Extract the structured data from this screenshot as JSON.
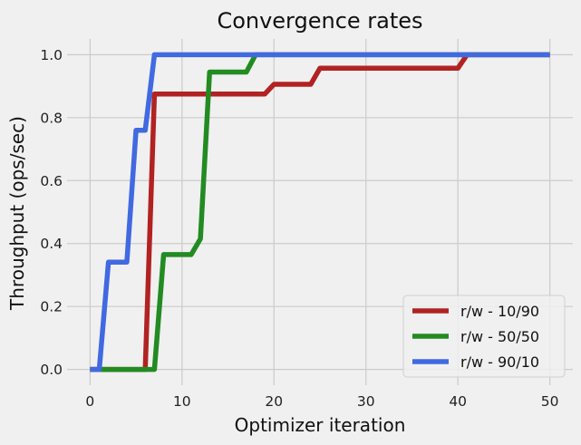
{
  "chart_data": {
    "type": "line",
    "title": "Convergence rates",
    "xlabel": "Optimizer iteration",
    "ylabel": "Throughput (ops/sec)",
    "xlim": [
      -2.5,
      52.5
    ],
    "ylim": [
      -0.05,
      1.05
    ],
    "xticks": [
      0,
      10,
      20,
      30,
      40,
      50
    ],
    "xtick_labels": [
      "0",
      "10",
      "20",
      "30",
      "40",
      "50"
    ],
    "yticks": [
      0.0,
      0.2,
      0.4,
      0.6,
      0.8,
      1.0
    ],
    "ytick_labels": [
      "0.0",
      "0.2",
      "0.4",
      "0.6",
      "0.8",
      "1.0"
    ],
    "grid": true,
    "legend_position": "lower-right",
    "series": [
      {
        "name": "r/w - 10/90",
        "color": "#b22222",
        "x": [
          0,
          1,
          2,
          3,
          4,
          5,
          6,
          7,
          8,
          9,
          10,
          11,
          12,
          13,
          14,
          15,
          16,
          17,
          18,
          19,
          20,
          21,
          22,
          23,
          24,
          25,
          26,
          27,
          28,
          29,
          30,
          31,
          32,
          33,
          34,
          35,
          36,
          37,
          38,
          39,
          40,
          41,
          42,
          43,
          44,
          45,
          46,
          47,
          48,
          49,
          50
        ],
        "y": [
          0,
          0,
          0,
          0,
          0,
          0,
          0,
          0.875,
          0.875,
          0.875,
          0.875,
          0.875,
          0.875,
          0.875,
          0.875,
          0.875,
          0.875,
          0.875,
          0.875,
          0.875,
          0.906,
          0.906,
          0.906,
          0.906,
          0.906,
          0.957,
          0.957,
          0.957,
          0.957,
          0.957,
          0.957,
          0.957,
          0.957,
          0.957,
          0.957,
          0.957,
          0.957,
          0.957,
          0.957,
          0.957,
          0.957,
          1.0,
          1.0,
          1.0,
          1.0,
          1.0,
          1.0,
          1.0,
          1.0,
          1.0,
          1.0
        ]
      },
      {
        "name": "r/w - 50/50",
        "color": "#228b22",
        "x": [
          0,
          1,
          2,
          3,
          4,
          5,
          6,
          7,
          8,
          9,
          10,
          11,
          12,
          13,
          14,
          15,
          16,
          17,
          18,
          19,
          20,
          21,
          22,
          23,
          24,
          25,
          26,
          27,
          28,
          29,
          30,
          31,
          32,
          33,
          34,
          35,
          36,
          37,
          38,
          39,
          40,
          41,
          42,
          43,
          44,
          45,
          46,
          47,
          48,
          49,
          50
        ],
        "y": [
          0,
          0,
          0,
          0,
          0,
          0,
          0,
          0,
          0.365,
          0.365,
          0.365,
          0.365,
          0.415,
          0.945,
          0.945,
          0.945,
          0.945,
          0.945,
          1.0,
          1.0,
          1.0,
          1.0,
          1.0,
          1.0,
          1.0,
          1.0,
          1.0,
          1.0,
          1.0,
          1.0,
          1.0,
          1.0,
          1.0,
          1.0,
          1.0,
          1.0,
          1.0,
          1.0,
          1.0,
          1.0,
          1.0,
          1.0,
          1.0,
          1.0,
          1.0,
          1.0,
          1.0,
          1.0,
          1.0,
          1.0,
          1.0
        ]
      },
      {
        "name": "r/w - 90/10",
        "color": "#4169e1",
        "x": [
          0,
          1,
          2,
          3,
          4,
          5,
          6,
          7,
          8,
          9,
          10,
          11,
          12,
          13,
          14,
          15,
          16,
          17,
          18,
          19,
          20,
          21,
          22,
          23,
          24,
          25,
          26,
          27,
          28,
          29,
          30,
          31,
          32,
          33,
          34,
          35,
          36,
          37,
          38,
          39,
          40,
          41,
          42,
          43,
          44,
          45,
          46,
          47,
          48,
          49,
          50
        ],
        "y": [
          0,
          0,
          0.341,
          0.341,
          0.341,
          0.76,
          0.76,
          1.0,
          1.0,
          1.0,
          1.0,
          1.0,
          1.0,
          1.0,
          1.0,
          1.0,
          1.0,
          1.0,
          1.0,
          1.0,
          1.0,
          1.0,
          1.0,
          1.0,
          1.0,
          1.0,
          1.0,
          1.0,
          1.0,
          1.0,
          1.0,
          1.0,
          1.0,
          1.0,
          1.0,
          1.0,
          1.0,
          1.0,
          1.0,
          1.0,
          1.0,
          1.0,
          1.0,
          1.0,
          1.0,
          1.0,
          1.0,
          1.0,
          1.0,
          1.0,
          1.0
        ]
      }
    ]
  }
}
